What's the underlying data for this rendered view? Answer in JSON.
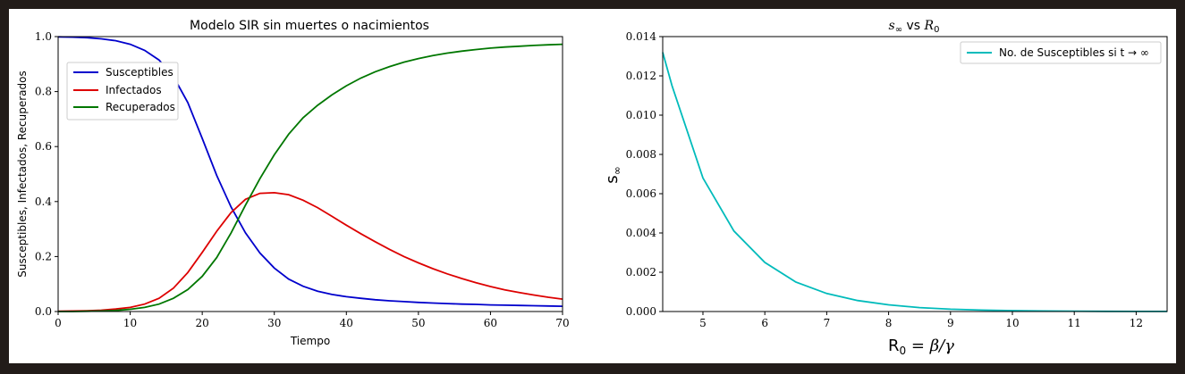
{
  "chart_data": [
    {
      "type": "line",
      "title": "Modelo SIR sin muertes o nacimientos",
      "xlabel": "Tiempo",
      "ylabel": "Susceptibles, Infectados, Recuperados",
      "xlim": [
        0,
        70
      ],
      "ylim": [
        0,
        1.0
      ],
      "xticks": [
        "0",
        "10",
        "20",
        "30",
        "40",
        "50",
        "60",
        "70"
      ],
      "yticks": [
        "0.0",
        "0.2",
        "0.4",
        "0.6",
        "0.8",
        "1.0"
      ],
      "legend_position": "upper-left",
      "grid": false,
      "x": [
        0,
        2,
        4,
        6,
        8,
        10,
        12,
        14,
        16,
        18,
        20,
        22,
        24,
        26,
        28,
        30,
        32,
        34,
        36,
        38,
        40,
        42,
        44,
        46,
        48,
        50,
        52,
        54,
        56,
        58,
        60,
        62,
        64,
        66,
        68,
        70
      ],
      "series": [
        {
          "name": "Susceptibles",
          "color": "#0000cc",
          "values": [
            0.999,
            0.998,
            0.996,
            0.992,
            0.985,
            0.972,
            0.95,
            0.915,
            0.855,
            0.76,
            0.63,
            0.495,
            0.38,
            0.286,
            0.213,
            0.158,
            0.118,
            0.092,
            0.074,
            0.062,
            0.054,
            0.048,
            0.043,
            0.039,
            0.036,
            0.033,
            0.031,
            0.029,
            0.027,
            0.026,
            0.024,
            0.023,
            0.022,
            0.021,
            0.02,
            0.019
          ]
        },
        {
          "name": "Infectados",
          "color": "#dd0000",
          "values": [
            0.001,
            0.002,
            0.003,
            0.005,
            0.009,
            0.015,
            0.027,
            0.048,
            0.085,
            0.142,
            0.215,
            0.292,
            0.36,
            0.408,
            0.43,
            0.432,
            0.425,
            0.405,
            0.378,
            0.346,
            0.314,
            0.283,
            0.254,
            0.226,
            0.2,
            0.177,
            0.156,
            0.137,
            0.12,
            0.105,
            0.091,
            0.079,
            0.069,
            0.06,
            0.052,
            0.045
          ]
        },
        {
          "name": "Recuperados",
          "color": "#007700",
          "values": [
            0.0,
            0.0,
            0.001,
            0.002,
            0.004,
            0.008,
            0.015,
            0.027,
            0.048,
            0.08,
            0.128,
            0.196,
            0.286,
            0.387,
            0.483,
            0.57,
            0.645,
            0.705,
            0.75,
            0.788,
            0.821,
            0.849,
            0.872,
            0.891,
            0.907,
            0.92,
            0.931,
            0.94,
            0.947,
            0.953,
            0.958,
            0.962,
            0.965,
            0.968,
            0.97,
            0.972
          ]
        }
      ]
    },
    {
      "type": "line",
      "title": "s_∞ vs R_0",
      "title_main": "s",
      "title_main_sub": "∞",
      "title_vs": " vs ",
      "title_r": "R",
      "title_r_sub": "0",
      "xlabel_main": "R",
      "xlabel_sub": "0",
      "xlabel_rest": " = β/γ",
      "ylabel_main": "s",
      "ylabel_sub": "∞",
      "xlim": [
        4.35,
        12.5
      ],
      "ylim": [
        0,
        0.014
      ],
      "xticks": [
        "5",
        "6",
        "7",
        "8",
        "9",
        "10",
        "11",
        "12"
      ],
      "xtick_values": [
        5,
        6,
        7,
        8,
        9,
        10,
        11,
        12
      ],
      "yticks": [
        "0.000",
        "0.002",
        "0.004",
        "0.006",
        "0.008",
        "0.010",
        "0.012",
        "0.014"
      ],
      "legend_position": "upper-right",
      "grid": false,
      "x": [
        4.35,
        4.5,
        5.0,
        5.5,
        6.0,
        6.5,
        7.0,
        7.5,
        8.0,
        8.5,
        9.0,
        9.5,
        10.0,
        10.5,
        11.0,
        11.5,
        12.0,
        12.5
      ],
      "series": [
        {
          "name": "No. de Susceptibles si t → ∞",
          "color": "#00bbbb",
          "values": [
            0.0132,
            0.0115,
            0.0068,
            0.0041,
            0.0025,
            0.0015,
            0.00092,
            0.00056,
            0.00034,
            0.0002,
            0.00012,
            7.5e-05,
            4.5e-05,
            2.8e-05,
            1.7e-05,
            1e-05,
            6e-06,
            4e-06
          ]
        }
      ]
    }
  ]
}
